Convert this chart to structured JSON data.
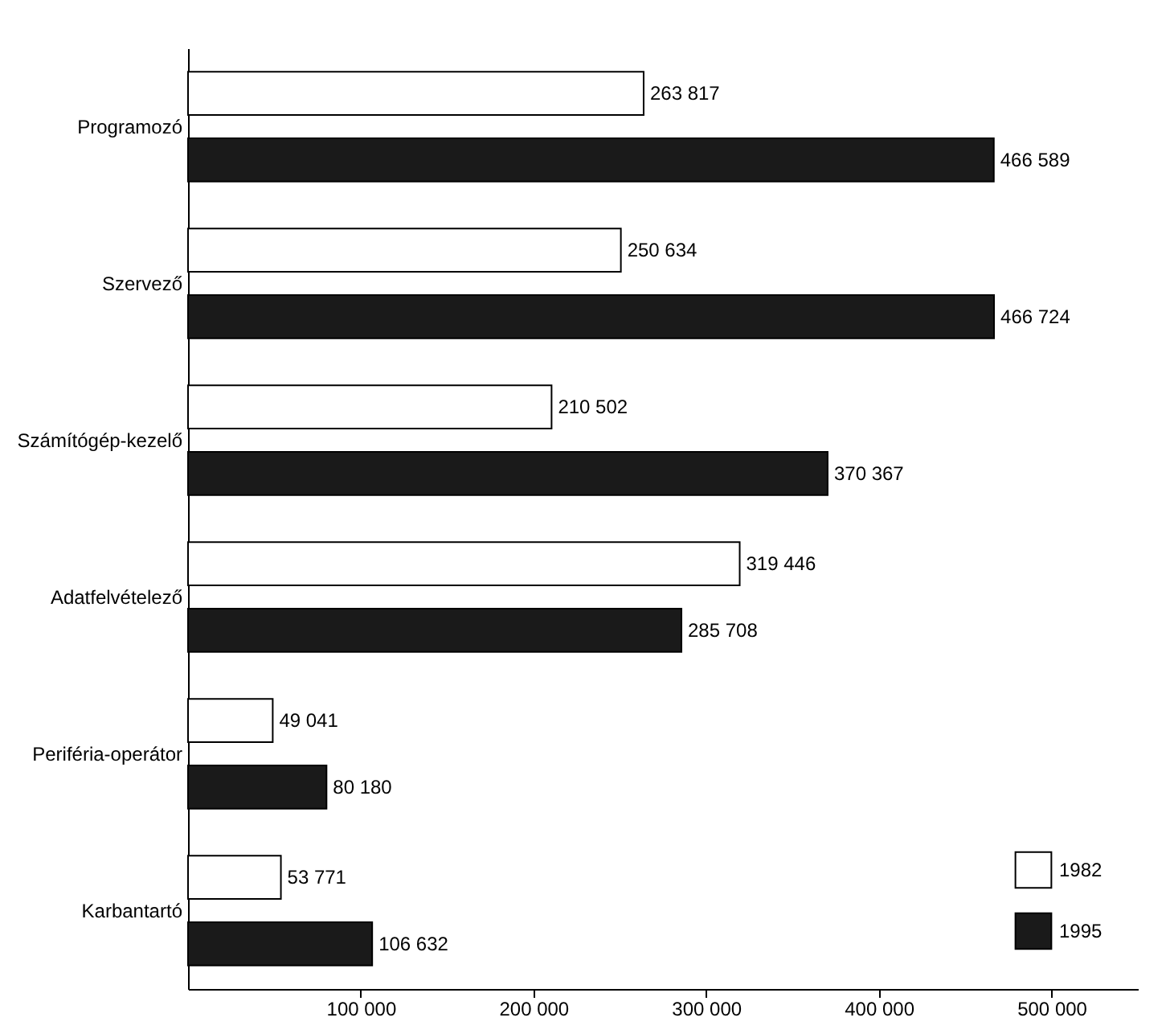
{
  "chart_data": {
    "type": "bar",
    "orientation": "horizontal",
    "categories": [
      "Programozó",
      "Szervező",
      "Számítógép-kezelő",
      "Adatfelvételező",
      "Periféria-operátor",
      "Karbantartó"
    ],
    "series": [
      {
        "name": "1982",
        "color": "#ffffff",
        "values": [
          263817,
          250634,
          210502,
          319446,
          49041,
          53771
        ]
      },
      {
        "name": "1995",
        "color": "#1a1a1a",
        "values": [
          466589,
          466724,
          370367,
          285708,
          80180,
          106632
        ]
      }
    ],
    "xlim": [
      0,
      550000
    ],
    "xticks": [
      {
        "value": 100000,
        "label": "100 000"
      },
      {
        "value": 200000,
        "label": "200 000"
      },
      {
        "value": 300000,
        "label": "300 000"
      },
      {
        "value": 400000,
        "label": "400 000"
      },
      {
        "value": 500000,
        "label": "500 000"
      }
    ],
    "data_labels": true,
    "legend": "bottom right",
    "grid": false
  }
}
